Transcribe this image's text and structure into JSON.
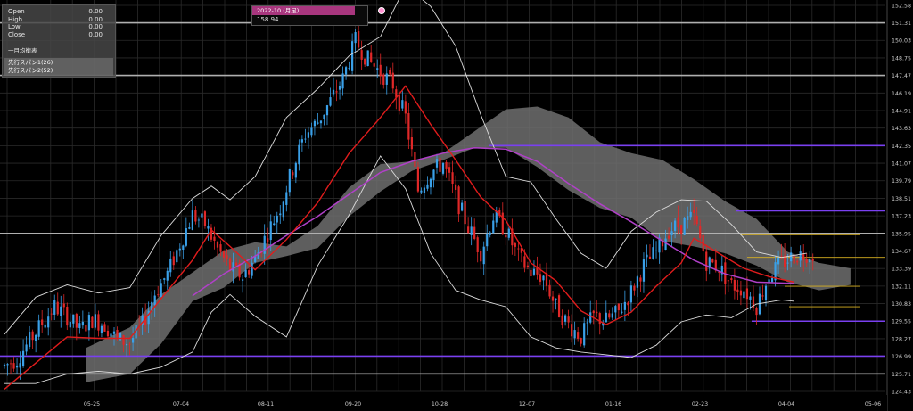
{
  "ohlc": {
    "rows": [
      {
        "label": "Open",
        "value": "0.00"
      },
      {
        "label": "High",
        "value": "0.00"
      },
      {
        "label": "Low",
        "value": "0.00"
      },
      {
        "label": "Close",
        "value": "0.00"
      }
    ]
  },
  "indicator": {
    "title": "一目均衡表",
    "span1": "先行スパン1(26)",
    "span2": "先行スパン2(52)"
  },
  "tooltip": {
    "label": "2022-10 (月足)",
    "value": "158.94"
  },
  "colors": {
    "bull": "#3aa0e8",
    "bear": "#e02828",
    "cloud": "#6e6e6e",
    "ma_short": "#e01c1c",
    "ma_long": "#b040c8",
    "bollinger": "#dcdcdc",
    "support_purple": "#7a40f0",
    "support_gray": "#b0b0b0",
    "support_yellow": "#d8b020"
  },
  "chart_data": {
    "type": "candlestick",
    "y_ticks": [
      "152.58",
      "151.31",
      "150.03",
      "148.75",
      "147.47",
      "146.19",
      "144.91",
      "143.63",
      "142.35",
      "141.07",
      "139.79",
      "138.51",
      "137.23",
      "135.95",
      "134.67",
      "133.39",
      "132.11",
      "130.83",
      "129.55",
      "128.27",
      "126.99",
      "125.71",
      "124.43"
    ],
    "ylim": [
      124.43,
      152.58
    ],
    "x_ticks": [
      "05-25",
      "07-04",
      "08-11",
      "09-20",
      "10-28",
      "12-07",
      "01-16",
      "02-23",
      "04-04",
      "05-06"
    ],
    "grid": true,
    "horizontal_levels": [
      {
        "value": 151.31,
        "color": "gray"
      },
      {
        "value": 147.47,
        "color": "gray"
      },
      {
        "value": 142.35,
        "color": "purple"
      },
      {
        "value": 135.95,
        "color": "gray"
      },
      {
        "value": 137.6,
        "color": "purple"
      },
      {
        "value": 135.85,
        "color": "yellow"
      },
      {
        "value": 134.2,
        "color": "yellow"
      },
      {
        "value": 132.1,
        "color": "yellow"
      },
      {
        "value": 130.6,
        "color": "yellow"
      },
      {
        "value": 129.55,
        "color": "purple"
      },
      {
        "value": 127.0,
        "color": "purple"
      },
      {
        "value": 125.71,
        "color": "gray"
      }
    ],
    "price_path": [
      [
        0,
        126.3
      ],
      [
        4,
        126.8
      ],
      [
        8,
        128.1
      ],
      [
        12,
        129.4
      ],
      [
        16,
        130.6
      ],
      [
        20,
        129.9
      ],
      [
        24,
        128.9
      ],
      [
        28,
        129.7
      ],
      [
        32,
        129.3
      ],
      [
        36,
        128.2
      ],
      [
        40,
        128.0
      ],
      [
        44,
        129.3
      ],
      [
        48,
        131.6
      ],
      [
        52,
        133.0
      ],
      [
        56,
        135.2
      ],
      [
        60,
        137.3
      ],
      [
        64,
        136.6
      ],
      [
        68,
        134.8
      ],
      [
        72,
        133.4
      ],
      [
        76,
        132.8
      ],
      [
        80,
        134.1
      ],
      [
        84,
        136.0
      ],
      [
        88,
        137.9
      ],
      [
        92,
        140.7
      ],
      [
        96,
        143.2
      ],
      [
        100,
        144.1
      ],
      [
        104,
        145.6
      ],
      [
        108,
        147.2
      ],
      [
        112,
        150.0
      ],
      [
        116,
        148.6
      ],
      [
        120,
        147.7
      ],
      [
        124,
        146.8
      ],
      [
        128,
        144.4
      ],
      [
        132,
        139.1
      ],
      [
        136,
        140.4
      ],
      [
        140,
        141.1
      ],
      [
        144,
        138.6
      ],
      [
        148,
        136.4
      ],
      [
        152,
        134.6
      ],
      [
        156,
        137.2
      ],
      [
        160,
        136.2
      ],
      [
        164,
        134.2
      ],
      [
        168,
        133.1
      ],
      [
        172,
        132.8
      ],
      [
        176,
        130.6
      ],
      [
        180,
        129.3
      ],
      [
        184,
        128.4
      ],
      [
        188,
        129.9
      ],
      [
        192,
        129.6
      ],
      [
        196,
        130.2
      ],
      [
        200,
        131.7
      ],
      [
        204,
        133.6
      ],
      [
        208,
        134.6
      ],
      [
        212,
        136.2
      ],
      [
        216,
        136.6
      ],
      [
        220,
        137.1
      ],
      [
        224,
        133.9
      ],
      [
        228,
        133.5
      ],
      [
        232,
        132.2
      ],
      [
        236,
        131.9
      ],
      [
        240,
        130.7
      ],
      [
        244,
        132.9
      ],
      [
        248,
        133.8
      ],
      [
        252,
        134.3
      ],
      [
        256,
        134.5
      ]
    ],
    "ma_short": [
      [
        0,
        124.6
      ],
      [
        10,
        126.5
      ],
      [
        20,
        128.4
      ],
      [
        30,
        128.3
      ],
      [
        40,
        128.3
      ],
      [
        50,
        131.2
      ],
      [
        60,
        134.0
      ],
      [
        66,
        136.2
      ],
      [
        72,
        135.0
      ],
      [
        80,
        133.3
      ],
      [
        90,
        135.5
      ],
      [
        100,
        138.2
      ],
      [
        110,
        141.8
      ],
      [
        120,
        144.4
      ],
      [
        128,
        146.7
      ],
      [
        136,
        143.9
      ],
      [
        144,
        141.3
      ],
      [
        152,
        138.6
      ],
      [
        160,
        136.9
      ],
      [
        168,
        133.8
      ],
      [
        176,
        132.5
      ],
      [
        184,
        130.3
      ],
      [
        192,
        129.3
      ],
      [
        200,
        130.2
      ],
      [
        208,
        132.1
      ],
      [
        216,
        133.8
      ],
      [
        220,
        135.6
      ],
      [
        228,
        134.5
      ],
      [
        236,
        133.4
      ],
      [
        244,
        132.8
      ],
      [
        252,
        132.4
      ]
    ],
    "ma_long": [
      [
        60,
        131.4
      ],
      [
        70,
        133.0
      ],
      [
        80,
        134.3
      ],
      [
        90,
        135.8
      ],
      [
        100,
        137.2
      ],
      [
        110,
        138.8
      ],
      [
        120,
        140.4
      ],
      [
        130,
        141.2
      ],
      [
        140,
        141.8
      ],
      [
        150,
        142.2
      ],
      [
        160,
        142.1
      ],
      [
        170,
        141.2
      ],
      [
        180,
        139.6
      ],
      [
        190,
        138.1
      ],
      [
        200,
        136.8
      ],
      [
        210,
        135.4
      ],
      [
        220,
        134.0
      ],
      [
        230,
        133.0
      ],
      [
        240,
        132.4
      ],
      [
        252,
        132.3
      ]
    ],
    "bollinger_upper": [
      [
        0,
        128.6
      ],
      [
        10,
        131.3
      ],
      [
        20,
        132.2
      ],
      [
        30,
        131.6
      ],
      [
        40,
        132.0
      ],
      [
        50,
        135.8
      ],
      [
        60,
        138.5
      ],
      [
        66,
        139.4
      ],
      [
        72,
        138.4
      ],
      [
        80,
        140.1
      ],
      [
        90,
        144.4
      ],
      [
        100,
        146.5
      ],
      [
        110,
        148.9
      ],
      [
        120,
        150.3
      ],
      [
        128,
        154.0
      ],
      [
        136,
        152.5
      ],
      [
        144,
        149.6
      ],
      [
        152,
        144.6
      ],
      [
        160,
        140.1
      ],
      [
        168,
        139.7
      ],
      [
        176,
        137.0
      ],
      [
        184,
        134.5
      ],
      [
        192,
        133.4
      ],
      [
        200,
        136.1
      ],
      [
        208,
        137.5
      ],
      [
        216,
        138.4
      ],
      [
        224,
        138.3
      ],
      [
        232,
        136.6
      ],
      [
        240,
        134.6
      ],
      [
        248,
        134.2
      ],
      [
        256,
        134.5
      ]
    ],
    "bollinger_lower": [
      [
        0,
        125.0
      ],
      [
        10,
        125.0
      ],
      [
        20,
        125.7
      ],
      [
        30,
        125.9
      ],
      [
        40,
        125.7
      ],
      [
        50,
        126.2
      ],
      [
        60,
        127.3
      ],
      [
        66,
        130.2
      ],
      [
        72,
        131.5
      ],
      [
        80,
        129.9
      ],
      [
        90,
        128.4
      ],
      [
        100,
        133.6
      ],
      [
        110,
        137.3
      ],
      [
        120,
        141.6
      ],
      [
        128,
        139.2
      ],
      [
        136,
        134.5
      ],
      [
        144,
        131.8
      ],
      [
        152,
        131.1
      ],
      [
        160,
        130.6
      ],
      [
        168,
        128.4
      ],
      [
        176,
        127.6
      ],
      [
        184,
        127.3
      ],
      [
        192,
        127.1
      ],
      [
        200,
        126.9
      ],
      [
        208,
        127.8
      ],
      [
        216,
        129.5
      ],
      [
        224,
        130.0
      ],
      [
        232,
        129.8
      ],
      [
        240,
        130.8
      ],
      [
        248,
        131.1
      ],
      [
        252,
        131.0
      ]
    ],
    "cloud_upper": [
      [
        26,
        127.6
      ],
      [
        40,
        129.1
      ],
      [
        50,
        131.5
      ],
      [
        60,
        133.1
      ],
      [
        70,
        134.7
      ],
      [
        80,
        135.3
      ],
      [
        90,
        135.0
      ],
      [
        100,
        136.5
      ],
      [
        110,
        139.3
      ],
      [
        120,
        141.0
      ],
      [
        130,
        141.2
      ],
      [
        140,
        141.8
      ],
      [
        150,
        143.4
      ],
      [
        160,
        145.0
      ],
      [
        170,
        145.2
      ],
      [
        180,
        144.4
      ],
      [
        190,
        142.6
      ],
      [
        200,
        141.8
      ],
      [
        210,
        141.3
      ],
      [
        220,
        139.9
      ],
      [
        230,
        138.3
      ],
      [
        240,
        137.0
      ],
      [
        250,
        134.6
      ],
      [
        260,
        133.8
      ],
      [
        270,
        133.4
      ]
    ],
    "cloud_lower": [
      [
        26,
        125.1
      ],
      [
        40,
        125.7
      ],
      [
        50,
        127.9
      ],
      [
        60,
        131.0
      ],
      [
        70,
        132.0
      ],
      [
        80,
        133.8
      ],
      [
        90,
        134.3
      ],
      [
        100,
        134.9
      ],
      [
        110,
        137.2
      ],
      [
        120,
        139.0
      ],
      [
        130,
        140.5
      ],
      [
        140,
        141.3
      ],
      [
        150,
        142.2
      ],
      [
        160,
        142.2
      ],
      [
        170,
        140.8
      ],
      [
        180,
        139.1
      ],
      [
        190,
        137.8
      ],
      [
        200,
        137.1
      ],
      [
        210,
        135.4
      ],
      [
        220,
        135.0
      ],
      [
        230,
        134.5
      ],
      [
        240,
        133.6
      ],
      [
        250,
        132.4
      ],
      [
        260,
        131.8
      ],
      [
        270,
        132.2
      ]
    ]
  }
}
